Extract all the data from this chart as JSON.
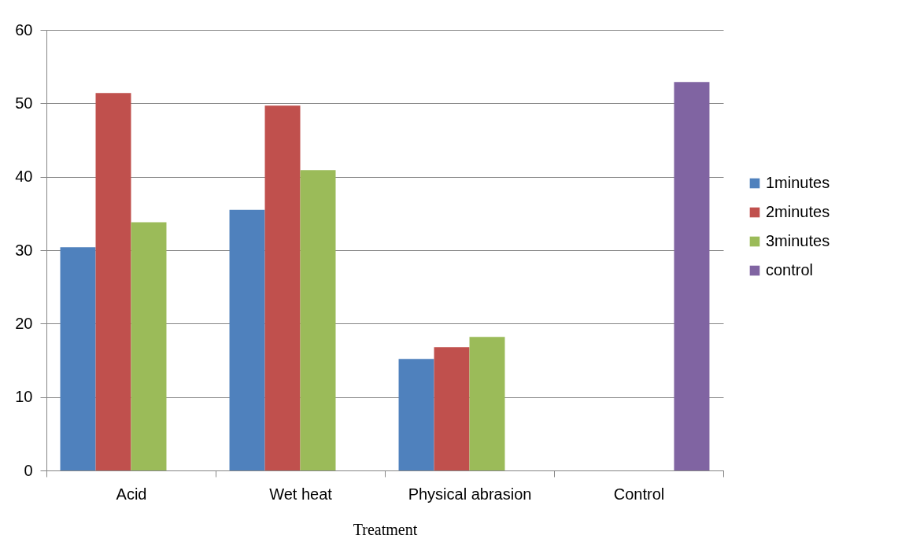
{
  "chart_data": {
    "type": "bar",
    "xlabel": "Treatment",
    "categories": [
      "Acid",
      "Wet heat",
      "Physical abrasion",
      "Control"
    ],
    "series": [
      {
        "name": "1minutes",
        "color": "#4f81bd",
        "values": [
          30.4,
          35.5,
          15.2,
          null
        ]
      },
      {
        "name": "2minutes",
        "color": "#c0504d",
        "values": [
          51.4,
          49.7,
          16.8,
          null
        ]
      },
      {
        "name": "3minutes",
        "color": "#9bbb59",
        "values": [
          33.8,
          40.9,
          18.2,
          null
        ]
      },
      {
        "name": "control",
        "color": "#8064a2",
        "values": [
          null,
          null,
          null,
          52.9
        ]
      }
    ],
    "ylim": [
      0,
      60
    ],
    "yticks": [
      0,
      10,
      20,
      30,
      40,
      50,
      60
    ],
    "grid": "y",
    "legend": "right"
  }
}
